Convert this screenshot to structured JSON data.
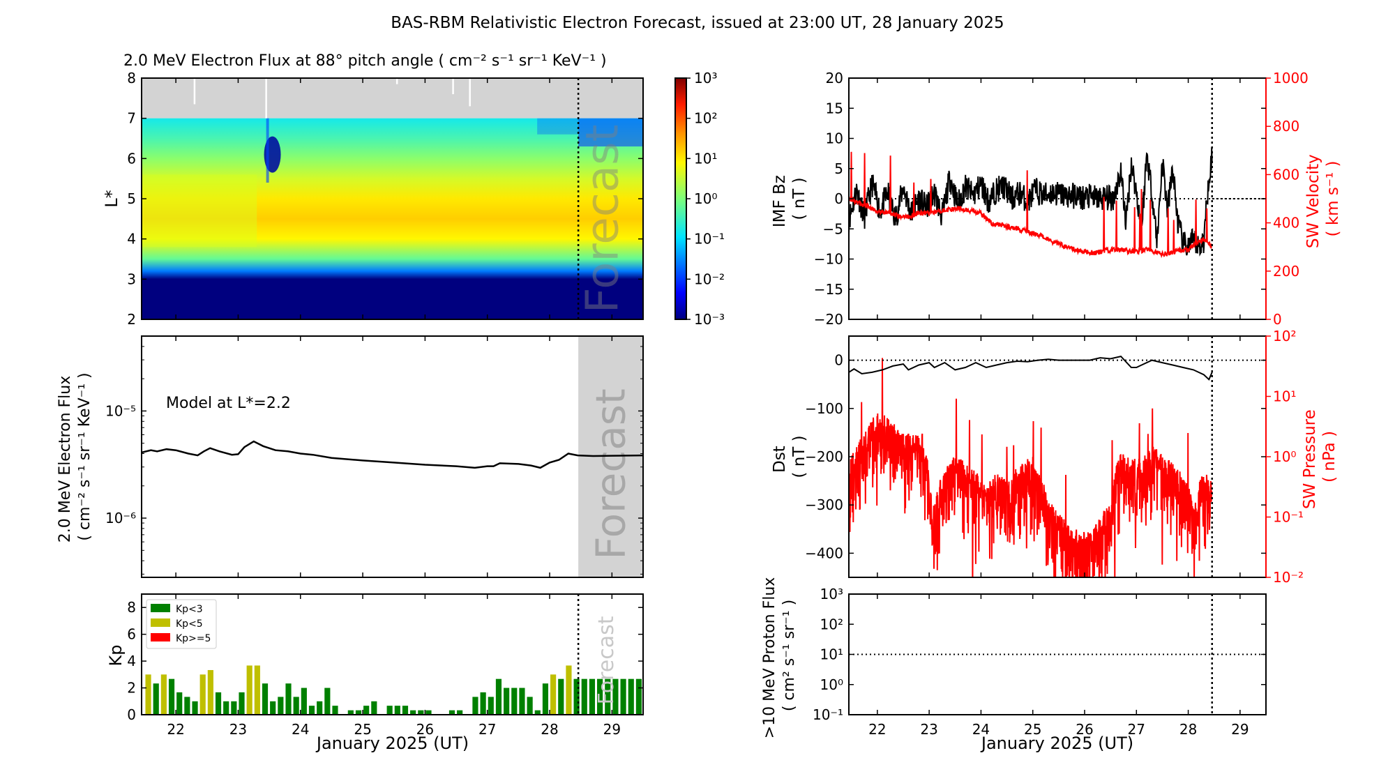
{
  "figure": {
    "title": "BAS-RBM Relativistic Electron Forecast, issued at 23:00 UT, 28 January 2025"
  },
  "chart_data": [
    {
      "id": "flux-heatmap",
      "type": "heatmap",
      "title": "2.0 MeV Electron Flux at 88° pitch angle ( cm⁻² s⁻¹ sr⁻¹ KeV⁻¹ )",
      "xlabel": "",
      "ylabel": "L*",
      "xlim": [
        21.45,
        29.5
      ],
      "ylim": [
        2,
        8
      ],
      "yticks": [
        "2",
        "3",
        "4",
        "5",
        "6",
        "7",
        "8"
      ],
      "colorbar": {
        "scale": "log",
        "range": [
          0.001,
          1000
        ],
        "ticks": [
          "10⁻³",
          "10⁻²",
          "10⁻¹",
          "10⁰",
          "10¹",
          "10²",
          "10³"
        ],
        "colormap": "jet"
      },
      "no_data_region": {
        "L_from": 7,
        "L_to": 8,
        "color": "#d3d3d3"
      },
      "forecast_start_day": 28.46,
      "forecast_label": "Forecast",
      "bands_log10_flux": [
        {
          "L": 2.0,
          "value": -3.0
        },
        {
          "L": 3.0,
          "value": -3.0
        },
        {
          "L": 3.2,
          "value": -1.6
        },
        {
          "L": 3.5,
          "value": -0.2
        },
        {
          "L": 4.0,
          "value": 0.9
        },
        {
          "L": 4.5,
          "value": 1.2
        },
        {
          "L": 5.0,
          "value": 1.0
        },
        {
          "L": 5.5,
          "value": 0.6
        },
        {
          "L": 6.0,
          "value": 0.1
        },
        {
          "L": 6.5,
          "value": -0.4
        },
        {
          "L": 7.0,
          "value": -0.8
        }
      ]
    },
    {
      "id": "flux-line",
      "type": "line",
      "ylabel": "2.0 MeV Electron Flux ( cm⁻² s⁻¹ sr⁻¹ KeV⁻¹ )",
      "yscale": "log",
      "ylim": [
        2.8e-07,
        5e-05
      ],
      "yticks": [
        {
          "value": 1e-06,
          "label": "10⁻⁶"
        },
        {
          "value": 1e-05,
          "label": "10⁻⁵"
        }
      ],
      "annotation": "Model at L*=2.2",
      "forecast_label": "Forecast",
      "forecast_range": [
        28.46,
        29.5
      ],
      "x": [
        21.45,
        21.6,
        21.7,
        21.85,
        22.0,
        22.2,
        22.35,
        22.45,
        22.55,
        22.7,
        22.9,
        23.0,
        23.1,
        23.25,
        23.4,
        23.6,
        23.8,
        24.0,
        24.2,
        24.5,
        25.0,
        25.5,
        26.0,
        26.5,
        26.8,
        27.0,
        27.1,
        27.2,
        27.5,
        27.7,
        27.85,
        28.0,
        28.15,
        28.3,
        28.45,
        28.7,
        29.0,
        29.5
      ],
      "y": [
        4.1e-06,
        4.3e-06,
        4.2e-06,
        4.4e-06,
        4.3e-06,
        4e-06,
        3.85e-06,
        4.2e-06,
        4.5e-06,
        4.2e-06,
        3.9e-06,
        3.95e-06,
        4.6e-06,
        5.2e-06,
        4.7e-06,
        4.3e-06,
        4.2e-06,
        4e-06,
        3.9e-06,
        3.65e-06,
        3.45e-06,
        3.3e-06,
        3.15e-06,
        3.05e-06,
        2.95e-06,
        3.05e-06,
        3.05e-06,
        3.25e-06,
        3.2e-06,
        3.1e-06,
        2.95e-06,
        3.3e-06,
        3.5e-06,
        4e-06,
        3.85e-06,
        3.8e-06,
        3.82e-06,
        3.85e-06
      ]
    },
    {
      "id": "kp-bars",
      "type": "bar",
      "ylabel": "Kp",
      "xlabel": "January 2025 (UT)",
      "ylim": [
        0,
        9
      ],
      "yticks": [
        "0",
        "2",
        "4",
        "6",
        "8"
      ],
      "xticks": [
        "22",
        "23",
        "24",
        "25",
        "26",
        "27",
        "28",
        "29"
      ],
      "xlim": [
        21.45,
        29.5
      ],
      "forecast_start_day": 28.46,
      "forecast_label": "Forecast",
      "legend": [
        {
          "label": "Kp<3",
          "color": "#008000"
        },
        {
          "label": "Kp<5",
          "color": "#bfbf00"
        },
        {
          "label": "Kp>=5",
          "color": "#ff0000"
        }
      ],
      "legend_position": "top-left",
      "bar_start_day": 21.5,
      "bar_interval_days": 0.125,
      "values": [
        3.0,
        2.33,
        3.0,
        2.67,
        1.67,
        1.33,
        1.0,
        3.0,
        3.33,
        1.67,
        1.0,
        1.0,
        1.67,
        3.67,
        3.67,
        2.33,
        1.0,
        1.33,
        2.33,
        1.33,
        2.0,
        0.67,
        1.0,
        2.0,
        0.67,
        0.0,
        0.33,
        0.33,
        0.67,
        1.0,
        0.0,
        0.67,
        0.67,
        0.67,
        0.33,
        0.33,
        0.33,
        0.0,
        0.0,
        0.33,
        0.33,
        0.0,
        1.33,
        1.67,
        1.33,
        2.67,
        2.0,
        2.0,
        2.0,
        1.33,
        0.33,
        2.33,
        3.0,
        2.67,
        3.67,
        2.67,
        2.67,
        2.67,
        2.67,
        2.67,
        2.67,
        2.67,
        2.67,
        2.67
      ]
    },
    {
      "id": "imf-sw-velocity",
      "type": "line",
      "ylabel": "IMF Bz ( nT )",
      "ylabel_right": "SW Velocity ( km s⁻¹ )",
      "ylim": [
        -20,
        20
      ],
      "ylim_right": [
        0,
        1000
      ],
      "yticks": [
        "-20",
        "-15",
        "-10",
        "-5",
        "0",
        "5",
        "10",
        "15",
        "20"
      ],
      "yticks_right": [
        "0",
        "200",
        "400",
        "600",
        "800",
        "1000"
      ],
      "xlim": [
        21.45,
        29.5
      ],
      "forecast_start_day": 28.46,
      "series": [
        {
          "name": "IMF Bz",
          "color": "#000000",
          "x": [
            21.45,
            21.6,
            21.75,
            21.9,
            22.05,
            22.2,
            22.35,
            22.5,
            22.65,
            22.8,
            22.95,
            23.1,
            23.25,
            23.4,
            23.55,
            23.7,
            23.85,
            24.0,
            24.15,
            24.3,
            24.45,
            24.6,
            24.75,
            24.9,
            25.05,
            25.2,
            25.35,
            25.5,
            25.65,
            25.8,
            25.95,
            26.1,
            26.25,
            26.4,
            26.55,
            26.7,
            26.8,
            26.9,
            27.0,
            27.1,
            27.2,
            27.3,
            27.4,
            27.5,
            27.6,
            27.7,
            27.8,
            27.9,
            28.0,
            28.1,
            28.2,
            28.3,
            28.4,
            28.46
          ],
          "y": [
            -3.5,
            1.5,
            -3.0,
            2.5,
            -2.0,
            1.0,
            -3.5,
            2.0,
            -2.5,
            0.0,
            -1.5,
            1.0,
            -3.0,
            3.5,
            -1.0,
            2.0,
            0.5,
            2.5,
            -0.5,
            1.5,
            2.0,
            0.0,
            1.0,
            -0.5,
            1.5,
            0.5,
            1.0,
            0.8,
            0.5,
            0.5,
            0.2,
            0.3,
            0.0,
            0.2,
            0.0,
            4.5,
            -4.0,
            6.0,
            1.0,
            -5.0,
            7.5,
            1.0,
            -7.0,
            6.5,
            -2.0,
            5.0,
            -4.0,
            -7.5,
            -8.0,
            -7.0,
            -8.0,
            -7.0,
            4.0,
            7.0
          ]
        },
        {
          "name": "SW Velocity",
          "color": "#ff0000",
          "axis": "right",
          "x": [
            21.45,
            21.6,
            21.8,
            22.0,
            22.2,
            22.4,
            22.6,
            22.8,
            23.0,
            23.2,
            23.4,
            23.6,
            23.8,
            24.0,
            24.2,
            24.4,
            24.6,
            24.8,
            25.0,
            25.2,
            25.4,
            25.6,
            25.8,
            26.0,
            26.2,
            26.4,
            26.6,
            26.8,
            27.0,
            27.2,
            27.4,
            27.6,
            27.8,
            28.0,
            28.2,
            28.3,
            28.46
          ],
          "y": [
            500,
            485,
            470,
            450,
            440,
            430,
            425,
            440,
            440,
            450,
            455,
            460,
            450,
            440,
            400,
            390,
            380,
            370,
            355,
            345,
            320,
            305,
            290,
            280,
            275,
            285,
            290,
            285,
            280,
            290,
            275,
            270,
            285,
            290,
            320,
            330,
            300
          ]
        }
      ]
    },
    {
      "id": "dst-sw-pressure",
      "type": "line",
      "ylabel": "Dst ( nT )",
      "ylabel_right": "SW Pressure ( nPa )",
      "ylim": [
        -450,
        50
      ],
      "yticks": [
        "-400",
        "-300",
        "-200",
        "-100",
        "0"
      ],
      "ylim_right_log": [
        0.01,
        100
      ],
      "yticks_right": [
        "10⁻²",
        "10⁻¹",
        "10⁰",
        "10¹",
        "10²"
      ],
      "xlim": [
        21.45,
        29.5
      ],
      "forecast_start_day": 28.46,
      "series": [
        {
          "name": "Dst",
          "color": "#000000",
          "x": [
            21.45,
            21.55,
            21.7,
            21.9,
            22.1,
            22.3,
            22.5,
            22.6,
            22.8,
            23.0,
            23.1,
            23.3,
            23.5,
            23.7,
            23.9,
            24.1,
            24.3,
            24.5,
            24.7,
            24.9,
            25.1,
            25.3,
            25.5,
            25.7,
            25.9,
            26.1,
            26.3,
            26.5,
            26.7,
            26.9,
            27.0,
            27.1,
            27.3,
            27.5,
            27.7,
            27.9,
            28.1,
            28.3,
            28.4,
            28.46
          ],
          "y": [
            -25,
            -18,
            -28,
            -25,
            -20,
            -12,
            -8,
            -20,
            -10,
            -5,
            -15,
            -5,
            -20,
            -15,
            -5,
            -15,
            -10,
            -5,
            -2,
            -3,
            0,
            2,
            0,
            0,
            0,
            0,
            5,
            3,
            8,
            -15,
            -15,
            -10,
            0,
            -5,
            -10,
            -15,
            -20,
            -30,
            -40,
            -25
          ]
        },
        {
          "name": "SW Pressure",
          "color": "#ff0000",
          "axis": "right",
          "x": [
            21.45,
            21.6,
            21.8,
            22.0,
            22.2,
            22.4,
            22.5,
            22.7,
            22.9,
            23.0,
            23.1,
            23.3,
            23.5,
            23.7,
            23.9,
            24.1,
            24.3,
            24.5,
            24.7,
            24.9,
            25.1,
            25.3,
            25.5,
            25.7,
            25.9,
            26.1,
            26.3,
            26.5,
            26.7,
            26.9,
            27.1,
            27.3,
            27.5,
            27.7,
            27.9,
            28.1,
            28.3,
            28.46
          ],
          "y": [
            0.5,
            0.8,
            1.5,
            3.0,
            2.5,
            1.5,
            1.3,
            1.3,
            1.3,
            0.15,
            0.1,
            0.3,
            0.6,
            0.4,
            0.3,
            0.15,
            0.3,
            0.2,
            0.35,
            0.5,
            0.3,
            0.1,
            0.06,
            0.04,
            0.03,
            0.03,
            0.05,
            0.1,
            0.6,
            0.5,
            0.5,
            0.8,
            0.6,
            0.4,
            0.3,
            0.08,
            0.3,
            0.2
          ]
        }
      ]
    },
    {
      "id": "proton-flux",
      "type": "line",
      "ylabel": ">10 MeV Proton Flux ( cm² s⁻¹ sr⁻¹ )",
      "xlabel": "January 2025 (UT)",
      "yscale": "log",
      "ylim": [
        0.1,
        1000
      ],
      "yticks": [
        "10⁻¹",
        "10⁰",
        "10¹",
        "10²",
        "10³"
      ],
      "xticks": [
        "22",
        "23",
        "24",
        "25",
        "26",
        "27",
        "28",
        "29"
      ],
      "xlim": [
        21.45,
        29.5
      ],
      "threshold": 10,
      "forecast_start_day": 28.46,
      "series": []
    }
  ]
}
